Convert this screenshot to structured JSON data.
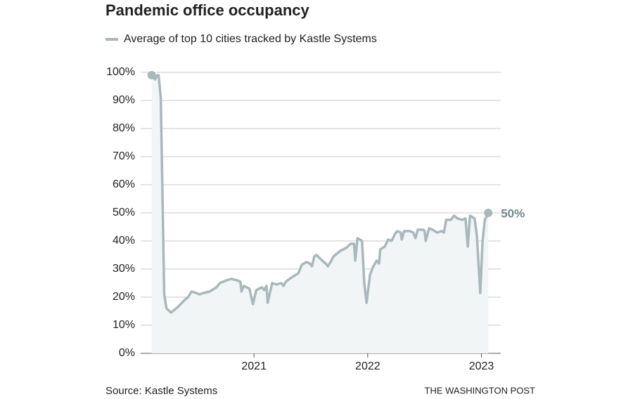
{
  "chart_data": {
    "type": "line",
    "title": "Pandemic office occupancy",
    "source": "Source: Kastle Systems",
    "credit": "THE WASHINGTON POST",
    "end_label": "50%",
    "x": [
      2020.1,
      2020.13,
      2020.15,
      2020.16,
      2020.18,
      2020.21,
      2020.23,
      2020.27,
      2020.33,
      2020.39,
      2020.42,
      2020.45,
      2020.49,
      2020.52,
      2020.56,
      2020.61,
      2020.67,
      2020.7,
      2020.76,
      2020.8,
      2020.85,
      2020.88,
      2020.89,
      2020.91,
      2020.96,
      2020.99,
      2021.02,
      2021.07,
      2021.09,
      2021.11,
      2021.12,
      2021.16,
      2021.2,
      2021.24,
      2021.26,
      2021.28,
      2021.33,
      2021.39,
      2021.42,
      2021.46,
      2021.49,
      2021.51,
      2021.53,
      2021.55,
      2021.6,
      2021.63,
      2021.65,
      2021.68,
      2021.7,
      2021.76,
      2021.81,
      2021.85,
      2021.88,
      2021.89,
      2021.91,
      2021.95,
      2021.97,
      2021.99,
      2022.02,
      2022.05,
      2022.08,
      2022.1,
      2022.11,
      2022.15,
      2022.18,
      2022.21,
      2022.24,
      2022.26,
      2022.29,
      2022.3,
      2022.32,
      2022.37,
      2022.4,
      2022.42,
      2022.44,
      2022.49,
      2022.5,
      2022.51,
      2022.54,
      2022.57,
      2022.61,
      2022.65,
      2022.67,
      2022.69,
      2022.73,
      2022.76,
      2022.79,
      2022.83,
      2022.86,
      2022.88,
      2022.9,
      2022.94,
      2022.96,
      2022.99,
      2023.01,
      2023.03,
      2023.06
    ],
    "series": [
      {
        "name": "Average of top 10 cities tracked by Kastle Systems",
        "color": "#a9b8bc",
        "values": [
          99,
          97.5,
          99,
          99,
          91,
          21,
          16,
          14.5,
          16.5,
          19,
          20,
          22,
          21.5,
          21,
          21.5,
          22,
          23.5,
          25,
          26,
          26.5,
          26,
          25.5,
          22,
          24,
          23,
          17.5,
          22.5,
          23.5,
          22.5,
          24,
          18,
          25,
          24.5,
          25,
          24,
          25.5,
          27,
          28.5,
          31.5,
          32.5,
          32,
          31,
          34.5,
          35,
          33,
          32,
          31,
          33,
          34.5,
          36.5,
          37.5,
          39,
          39,
          33,
          41,
          40,
          25,
          18,
          28,
          31,
          33,
          32,
          37,
          38,
          40.5,
          40,
          42.5,
          43.5,
          43,
          40.5,
          43.5,
          43.5,
          43,
          41,
          44,
          44,
          43.5,
          40,
          44.5,
          44,
          43,
          43.5,
          43,
          47.5,
          47.5,
          49,
          48,
          47.5,
          48,
          38,
          49,
          48,
          42,
          21.5,
          40,
          47.5,
          50
        ]
      }
    ],
    "xlim": [
      2020,
      2023.17
    ],
    "xticks": [
      2021,
      2022,
      2023
    ],
    "ylim": [
      0,
      100
    ],
    "yticks": [
      {
        "value": 0,
        "label": "0%"
      },
      {
        "value": 10,
        "label": "10%"
      },
      {
        "value": 20,
        "label": "20%"
      },
      {
        "value": 30,
        "label": "30%"
      },
      {
        "value": 40,
        "label": "40%"
      },
      {
        "value": 50,
        "label": "50%"
      },
      {
        "value": 60,
        "label": "60%"
      },
      {
        "value": 70,
        "label": "70%"
      },
      {
        "value": 80,
        "label": "80%"
      },
      {
        "value": 90,
        "label": "90%"
      },
      {
        "value": 100,
        "label": "100%"
      }
    ],
    "grid": true
  }
}
